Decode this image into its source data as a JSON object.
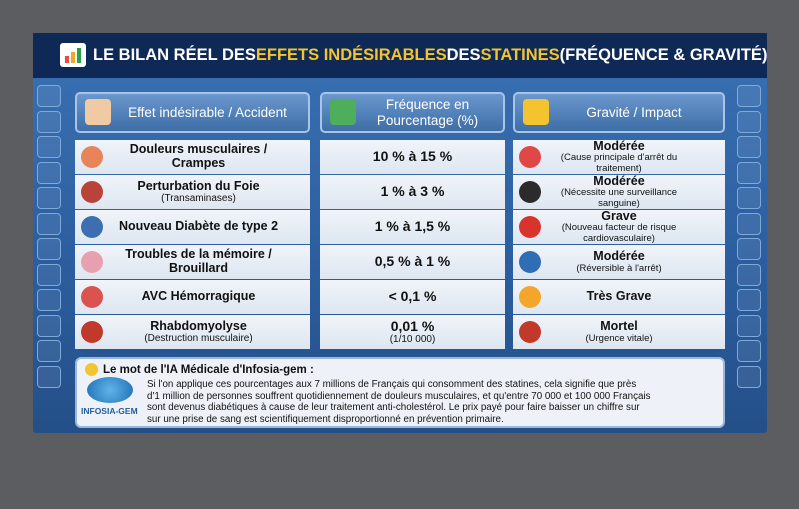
{
  "title": {
    "parts": [
      "LE BILAN RÉEL DES ",
      "EFFETS INDÉSIRABLES",
      " DES ",
      "STATINES",
      " (FRÉQUENCE & GRAVITÉ)"
    ]
  },
  "table": {
    "headers": [
      "Effet indésirable / Accident",
      "Fréquence en Pourcentage (%)",
      "Gravité / Impact"
    ],
    "rows": [
      {
        "effect": {
          "name": "Douleurs musculaires / Crampes"
        },
        "frequency": {
          "value": "10 % à 15 %"
        },
        "severity": {
          "level": "Modérée",
          "detail": "(Cause principale d'arrêt du traitement)"
        }
      },
      {
        "effect": {
          "name": "Perturbation du Foie",
          "detail": "(Transaminases)"
        },
        "frequency": {
          "value": "1 % à 3 %"
        },
        "severity": {
          "level": "Modérée",
          "detail": "(Nécessite une surveillance sanguine)"
        }
      },
      {
        "effect": {
          "name": "Nouveau Diabète de type 2"
        },
        "frequency": {
          "value": "1 % à 1,5 %"
        },
        "severity": {
          "level": "Grave",
          "detail": "(Nouveau facteur de risque cardiovasculaire)"
        }
      },
      {
        "effect": {
          "name": "Troubles de la mémoire / Brouillard"
        },
        "frequency": {
          "value": "0,5 % à 1 %"
        },
        "severity": {
          "level": "Modérée",
          "detail": "(Réversible à l'arrêt)"
        }
      },
      {
        "effect": {
          "name": "AVC Hémorragique"
        },
        "frequency": {
          "value": "< 0,1 %"
        },
        "severity": {
          "level": "Très Grave"
        }
      },
      {
        "effect": {
          "name": "Rhabdomyolyse",
          "detail": "(Destruction musculaire)"
        },
        "frequency": {
          "value": "0,01 %",
          "detail": "(1/10 000)"
        },
        "severity": {
          "level": "Mortel",
          "detail": "(Urgence vitale)"
        }
      }
    ]
  },
  "note": {
    "title": "Le mot de l'IA Médicale d'Infosia-gem :",
    "logo": "INFOSIA-GEM",
    "lines": [
      "Si l'on applique ces pourcentages aux 7 millions de Français qui consomment des statines, cela signifie que près",
      "d'1 million de personnes souffrent quotidiennement de douleurs musculaires, et qu'entre 70 000 et 100 000 Français",
      "sont devenus diabétiques à cause de leur traitement anti-cholestérol. Le prix payé pour faire baisser un chiffre sur",
      "sur une prise de sang est scientifiquement disproportionné en prévention primaire."
    ]
  }
}
